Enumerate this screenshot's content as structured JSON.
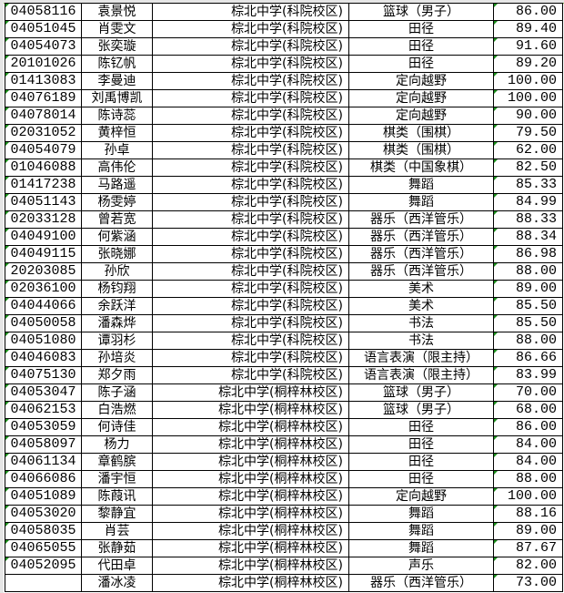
{
  "rows": [
    {
      "id": "04058116",
      "name": "袁景悦",
      "school": "棕北中学(科院校区)",
      "category": "篮球（男子）",
      "score": "86.00"
    },
    {
      "id": "04051045",
      "name": "肖雯文",
      "school": "棕北中学(科院校区)",
      "category": "田径",
      "score": "89.40"
    },
    {
      "id": "04054073",
      "name": "张奕璇",
      "school": "棕北中学(科院校区)",
      "category": "田径",
      "score": "91.60"
    },
    {
      "id": "20101026",
      "name": "陈钇帆",
      "school": "棕北中学(科院校区)",
      "category": "田径",
      "score": "89.20"
    },
    {
      "id": "01413083",
      "name": "李曼迪",
      "school": "棕北中学(科院校区)",
      "category": "定向越野",
      "score": "100.00"
    },
    {
      "id": "04076189",
      "name": "刘禹博凯",
      "school": "棕北中学(科院校区)",
      "category": "定向越野",
      "score": "100.00"
    },
    {
      "id": "04078014",
      "name": "陈诗蕊",
      "school": "棕北中学(科院校区)",
      "category": "定向越野",
      "score": "90.00"
    },
    {
      "id": "02031052",
      "name": "黄梓恒",
      "school": "棕北中学(科院校区)",
      "category": "棋类（围棋）",
      "score": "79.50"
    },
    {
      "id": "04054079",
      "name": "孙卓",
      "school": "棕北中学(科院校区)",
      "category": "棋类（围棋）",
      "score": "62.00"
    },
    {
      "id": "01046088",
      "name": "高伟伦",
      "school": "棕北中学(科院校区)",
      "category": "棋类（中国象棋）",
      "score": "82.50"
    },
    {
      "id": "01417238",
      "name": "马路遥",
      "school": "棕北中学(科院校区)",
      "category": "舞蹈",
      "score": "85.33"
    },
    {
      "id": "04051143",
      "name": "杨雯婷",
      "school": "棕北中学(科院校区)",
      "category": "舞蹈",
      "score": "84.99"
    },
    {
      "id": "02033128",
      "name": "曾若宽",
      "school": "棕北中学(科院校区)",
      "category": "器乐（西洋管乐）",
      "score": "88.33"
    },
    {
      "id": "04049100",
      "name": "何紫涵",
      "school": "棕北中学(科院校区)",
      "category": "器乐（西洋管乐）",
      "score": "88.34"
    },
    {
      "id": "04049115",
      "name": "张晓娜",
      "school": "棕北中学(科院校区)",
      "category": "器乐（西洋管乐）",
      "score": "86.98"
    },
    {
      "id": "20203085",
      "name": "孙欣",
      "school": "棕北中学(科院校区)",
      "category": "器乐（西洋管乐）",
      "score": "88.00"
    },
    {
      "id": "02036100",
      "name": "杨钧翔",
      "school": "棕北中学(科院校区)",
      "category": "美术",
      "score": "89.00"
    },
    {
      "id": "04044066",
      "name": "余跃洋",
      "school": "棕北中学(科院校区)",
      "category": "美术",
      "score": "85.50"
    },
    {
      "id": "04050058",
      "name": "潘森烨",
      "school": "棕北中学(科院校区)",
      "category": "书法",
      "score": "85.50"
    },
    {
      "id": "04051080",
      "name": "谭羽杉",
      "school": "棕北中学(科院校区)",
      "category": "书法",
      "score": "88.00"
    },
    {
      "id": "04046083",
      "name": "孙培炎",
      "school": "棕北中学(科院校区)",
      "category": "语言表演（限主持）",
      "score": "86.66"
    },
    {
      "id": "04075130",
      "name": "郑夕雨",
      "school": "棕北中学(科院校区)",
      "category": "语言表演（限主持）",
      "score": "83.99"
    },
    {
      "id": "04053047",
      "name": "陈子涵",
      "school": "棕北中学(桐梓林校区)",
      "category": "篮球（男子）",
      "score": "70.00"
    },
    {
      "id": "04062153",
      "name": "白浩燃",
      "school": "棕北中学(桐梓林校区)",
      "category": "篮球（男子）",
      "score": "68.00"
    },
    {
      "id": "04053059",
      "name": "何诗佳",
      "school": "棕北中学(桐梓林校区)",
      "category": "田径",
      "score": "86.00"
    },
    {
      "id": "04058097",
      "name": "杨力",
      "school": "棕北中学(桐梓林校区)",
      "category": "田径",
      "score": "84.00"
    },
    {
      "id": "04061134",
      "name": "章鹤膑",
      "school": "棕北中学(桐梓林校区)",
      "category": "田径",
      "score": "84.00"
    },
    {
      "id": "04066086",
      "name": "潘宇恒",
      "school": "棕北中学(桐梓林校区)",
      "category": "田径",
      "score": "88.00"
    },
    {
      "id": "04051089",
      "name": "陈葭讯",
      "school": "棕北中学(桐梓林校区)",
      "category": "定向越野",
      "score": "100.00"
    },
    {
      "id": "04053020",
      "name": "黎静宜",
      "school": "棕北中学(桐梓林校区)",
      "category": "舞蹈",
      "score": "88.16"
    },
    {
      "id": "04058035",
      "name": "肖芸",
      "school": "棕北中学(桐梓林校区)",
      "category": "舞蹈",
      "score": "89.00"
    },
    {
      "id": "04065055",
      "name": "张静茹",
      "school": "棕北中学(桐梓林校区)",
      "category": "舞蹈",
      "score": "87.67"
    },
    {
      "id": "04052095",
      "name": "代田卓",
      "school": "棕北中学(桐梓林校区)",
      "category": "声乐",
      "score": "82.00"
    },
    {
      "id": "",
      "name": "潘冰凌",
      "school": "棕北中学(桐梓林校区)",
      "category": "器乐（西洋管乐）",
      "score": "73.00"
    }
  ]
}
